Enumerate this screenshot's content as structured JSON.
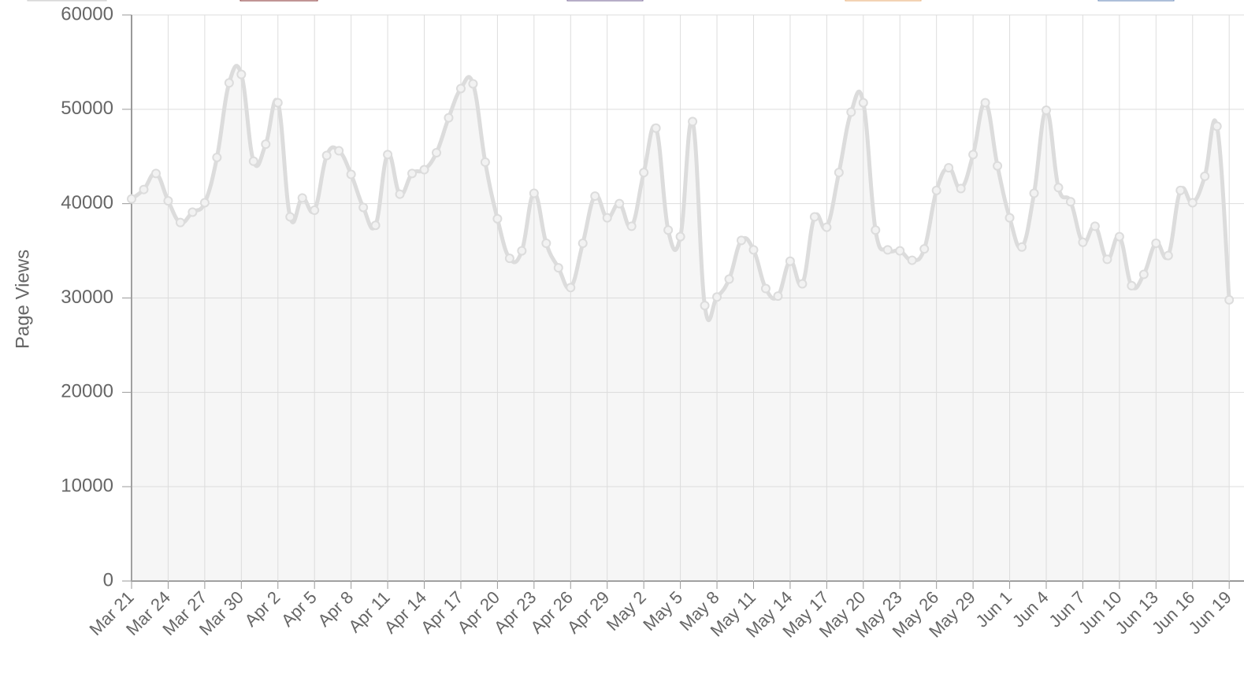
{
  "chart_data": {
    "type": "line",
    "y_label": "Page Views",
    "categories": [
      "Mar 21",
      null,
      null,
      "Mar 24",
      null,
      null,
      "Mar 27",
      null,
      null,
      "Mar 30",
      null,
      null,
      "Apr 2",
      null,
      null,
      "Apr 5",
      null,
      null,
      "Apr 8",
      null,
      null,
      "Apr 11",
      null,
      null,
      "Apr 14",
      null,
      null,
      "Apr 17",
      null,
      null,
      "Apr 20",
      null,
      null,
      "Apr 23",
      null,
      null,
      "Apr 26",
      null,
      null,
      "Apr 29",
      null,
      null,
      "May 2",
      null,
      null,
      "May 5",
      null,
      null,
      "May 8",
      null,
      null,
      "May 11",
      null,
      null,
      "May 14",
      null,
      null,
      "May 17",
      null,
      null,
      "May 20",
      null,
      null,
      "May 23",
      null,
      null,
      "May 26",
      null,
      null,
      "May 29",
      null,
      null,
      "Jun 1",
      null,
      null,
      "Jun 4",
      null,
      null,
      "Jun 7",
      null,
      null,
      "Jun 10",
      null,
      null,
      "Jun 13",
      null,
      null,
      "Jun 16",
      null,
      null,
      "Jun 19"
    ],
    "values": [
      40500,
      41500,
      43200,
      40300,
      38000,
      39100,
      40100,
      44900,
      52800,
      53700,
      44500,
      46300,
      50700,
      38600,
      40600,
      39300,
      45100,
      45600,
      43100,
      39600,
      37700,
      45200,
      41000,
      43200,
      43600,
      45400,
      49100,
      52200,
      52700,
      44400,
      38400,
      34200,
      35000,
      41100,
      35800,
      33200,
      31100,
      35800,
      40800,
      38500,
      40000,
      37600,
      43300,
      48000,
      37200,
      36500,
      48700,
      29200,
      30100,
      32000,
      36100,
      35100,
      31000,
      30200,
      33900,
      31500,
      38600,
      37500,
      43300,
      49700,
      50700,
      37200,
      35100,
      35000,
      34000,
      35200,
      41400,
      43800,
      41600,
      45200,
      50700,
      44000,
      38500,
      35400,
      41100,
      49900,
      41700,
      40200,
      35900,
      37600,
      34100,
      36500,
      31300,
      32500,
      35800,
      34500,
      41400,
      40100,
      42900,
      48200,
      29800
    ],
    "color": "#dcdcdc",
    "ylim": [
      0,
      60000
    ],
    "yticks": [
      0,
      10000,
      20000,
      30000,
      40000,
      50000,
      60000
    ],
    "grid": true
  }
}
